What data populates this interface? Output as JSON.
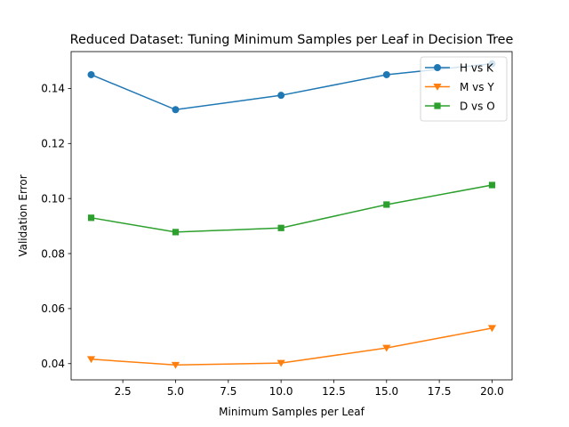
{
  "chart_data": {
    "type": "line",
    "title": "Reduced Dataset: Tuning Minimum Samples per Leaf in Decision Tree",
    "xlabel": "Minimum Samples per Leaf",
    "ylabel": "Validation Error",
    "x": [
      1,
      5,
      10,
      15,
      20
    ],
    "xlim": [
      0.05,
      20.95
    ],
    "ylim": [
      0.0341,
      0.1534
    ],
    "xticks": [
      2.5,
      5.0,
      7.5,
      10.0,
      12.5,
      15.0,
      17.5,
      20.0
    ],
    "xtick_labels": [
      "2.5",
      "5.0",
      "7.5",
      "10.0",
      "12.5",
      "15.0",
      "17.5",
      "20.0"
    ],
    "yticks": [
      0.04,
      0.06,
      0.08,
      0.1,
      0.12,
      0.14
    ],
    "ytick_labels": [
      "0.04",
      "0.06",
      "0.08",
      "0.10",
      "0.12",
      "0.14"
    ],
    "grid": false,
    "legend_position": "top-right",
    "series": [
      {
        "name": "H vs K",
        "values": [
          0.145,
          0.1323,
          0.1375,
          0.145,
          0.149
        ],
        "color": "#1f77b4",
        "marker": "circle"
      },
      {
        "name": "M vs Y",
        "values": [
          0.0416,
          0.0395,
          0.0402,
          0.0457,
          0.0529
        ],
        "color": "#ff7f0e",
        "marker": "triangle-down"
      },
      {
        "name": "D vs O",
        "values": [
          0.093,
          0.0878,
          0.0893,
          0.0978,
          0.1049
        ],
        "color": "#2ca02c",
        "marker": "square"
      }
    ]
  }
}
